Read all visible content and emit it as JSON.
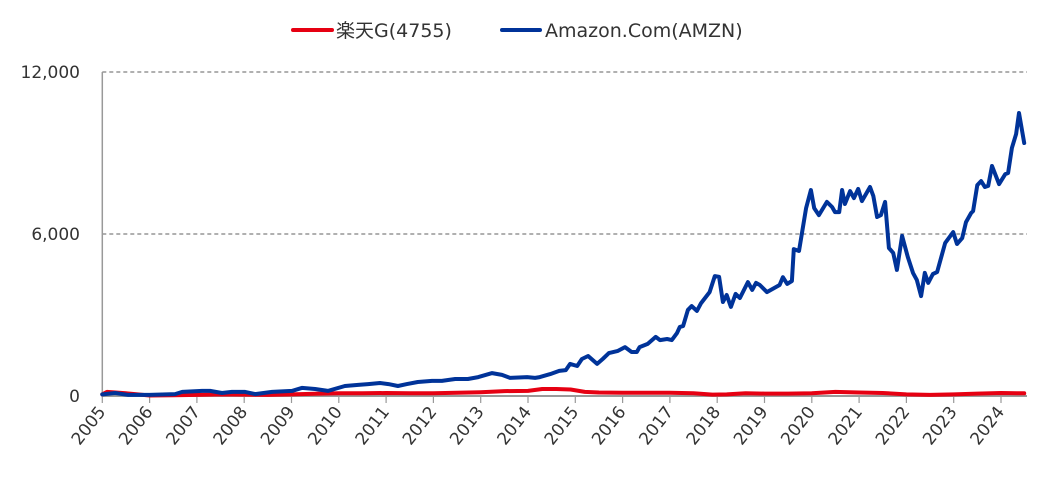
{
  "chart_data": {
    "type": "line",
    "title": "",
    "xlabel": "",
    "ylabel": "",
    "ylim": [
      0,
      12000
    ],
    "xlim": [
      2005,
      2024.5
    ],
    "yticks": [
      0,
      6000,
      12000
    ],
    "ytick_labels": [
      "0",
      "6,000",
      "12,000"
    ],
    "xtick_labels": [
      "2005",
      "2006",
      "2007",
      "2008",
      "2009",
      "2010",
      "2011",
      "2012",
      "2013",
      "2014",
      "2015",
      "2016",
      "2017",
      "2018",
      "2019",
      "2020",
      "2021",
      "2022",
      "2023",
      "2024"
    ],
    "grid": "horizontal dashed",
    "legend_position": "top",
    "series": [
      {
        "name": "楽天G(4755)",
        "color": "#e60012",
        "x": [
          2005.0,
          2005.1,
          2005.5,
          2006.0,
          2006.5,
          2007.0,
          2007.5,
          2008.0,
          2008.5,
          2009.0,
          2009.5,
          2010.0,
          2010.5,
          2011.0,
          2011.5,
          2012.0,
          2012.5,
          2013.0,
          2013.5,
          2014.0,
          2014.3,
          2014.6,
          2014.9,
          2015.2,
          2015.5,
          2016.0,
          2016.5,
          2017.0,
          2017.5,
          2017.9,
          2018.2,
          2018.6,
          2019.0,
          2019.5,
          2020.0,
          2020.5,
          2021.0,
          2021.5,
          2022.0,
          2022.5,
          2023.0,
          2023.5,
          2024.0,
          2024.49
        ],
        "y": [
          60,
          150,
          100,
          20,
          30,
          40,
          60,
          50,
          40,
          60,
          80,
          100,
          100,
          110,
          100,
          100,
          120,
          140,
          180,
          190,
          260,
          260,
          240,
          150,
          130,
          120,
          120,
          120,
          100,
          50,
          60,
          100,
          90,
          90,
          100,
          150,
          130,
          110,
          60,
          40,
          60,
          90,
          110,
          100
        ]
      },
      {
        "name": "Amazon.Com(AMZN)",
        "color": "#003399",
        "x": [
          2005.0,
          2005.27,
          2005.55,
          2006.0,
          2006.54,
          2006.69,
          2007.11,
          2007.28,
          2007.53,
          2007.74,
          2008.02,
          2008.23,
          2008.59,
          2009.01,
          2009.22,
          2009.5,
          2009.77,
          2010.13,
          2010.41,
          2010.62,
          2010.87,
          2011.05,
          2011.25,
          2011.44,
          2011.67,
          2011.97,
          2012.18,
          2012.46,
          2012.73,
          2012.95,
          2013.24,
          2013.45,
          2013.62,
          2013.98,
          2014.15,
          2014.25,
          2014.47,
          2014.66,
          2014.8,
          2014.89,
          2015.04,
          2015.14,
          2015.27,
          2015.46,
          2015.58,
          2015.71,
          2015.9,
          2016.05,
          2016.19,
          2016.3,
          2016.36,
          2016.53,
          2016.7,
          2016.79,
          2016.94,
          2017.04,
          2017.15,
          2017.21,
          2017.28,
          2017.38,
          2017.46,
          2017.57,
          2017.66,
          2017.84,
          2017.95,
          2018.04,
          2018.12,
          2018.2,
          2018.29,
          2018.39,
          2018.48,
          2018.65,
          2018.74,
          2018.82,
          2018.9,
          2019.05,
          2019.32,
          2019.39,
          2019.48,
          2019.58,
          2019.62,
          2019.73,
          2019.88,
          2019.98,
          2020.05,
          2020.15,
          2020.32,
          2020.43,
          2020.49,
          2020.58,
          2020.64,
          2020.7,
          2020.81,
          2020.89,
          2020.98,
          2021.06,
          2021.23,
          2021.3,
          2021.38,
          2021.46,
          2021.55,
          2021.63,
          2021.72,
          2021.8,
          2021.91,
          2022.03,
          2022.14,
          2022.22,
          2022.31,
          2022.39,
          2022.46,
          2022.56,
          2022.65,
          2022.82,
          2022.99,
          2023.07,
          2023.18,
          2023.26,
          2023.37,
          2023.41,
          2023.5,
          2023.58,
          2023.66,
          2023.73,
          2023.81,
          2023.96,
          2024.09,
          2024.15,
          2024.23,
          2024.32,
          2024.38,
          2024.49
        ],
        "y": [
          60,
          110,
          40,
          40,
          70,
          150,
          190,
          190,
          110,
          150,
          150,
          70,
          150,
          190,
          300,
          260,
          190,
          370,
          410,
          440,
          480,
          440,
          370,
          440,
          520,
          560,
          560,
          630,
          630,
          700,
          850,
          780,
          670,
          700,
          670,
          700,
          810,
          930,
          960,
          1190,
          1110,
          1370,
          1480,
          1190,
          1370,
          1590,
          1670,
          1810,
          1630,
          1630,
          1810,
          1930,
          2190,
          2070,
          2110,
          2070,
          2330,
          2560,
          2590,
          3190,
          3330,
          3150,
          3440,
          3850,
          4440,
          4410,
          3480,
          3740,
          3300,
          3780,
          3630,
          4220,
          3930,
          4190,
          4110,
          3850,
          4110,
          4400,
          4150,
          4260,
          5440,
          5370,
          6960,
          7630,
          6960,
          6700,
          7190,
          7000,
          6810,
          6810,
          7630,
          7110,
          7590,
          7330,
          7670,
          7220,
          7740,
          7410,
          6630,
          6700,
          7190,
          5480,
          5300,
          4670,
          5930,
          5150,
          4560,
          4300,
          3700,
          4560,
          4190,
          4520,
          4590,
          5670,
          6070,
          5630,
          5850,
          6440,
          6780,
          6850,
          7810,
          7960,
          7740,
          7780,
          8520,
          7850,
          8220,
          8260,
          9190,
          9700,
          10480,
          9370
        ]
      }
    ]
  }
}
